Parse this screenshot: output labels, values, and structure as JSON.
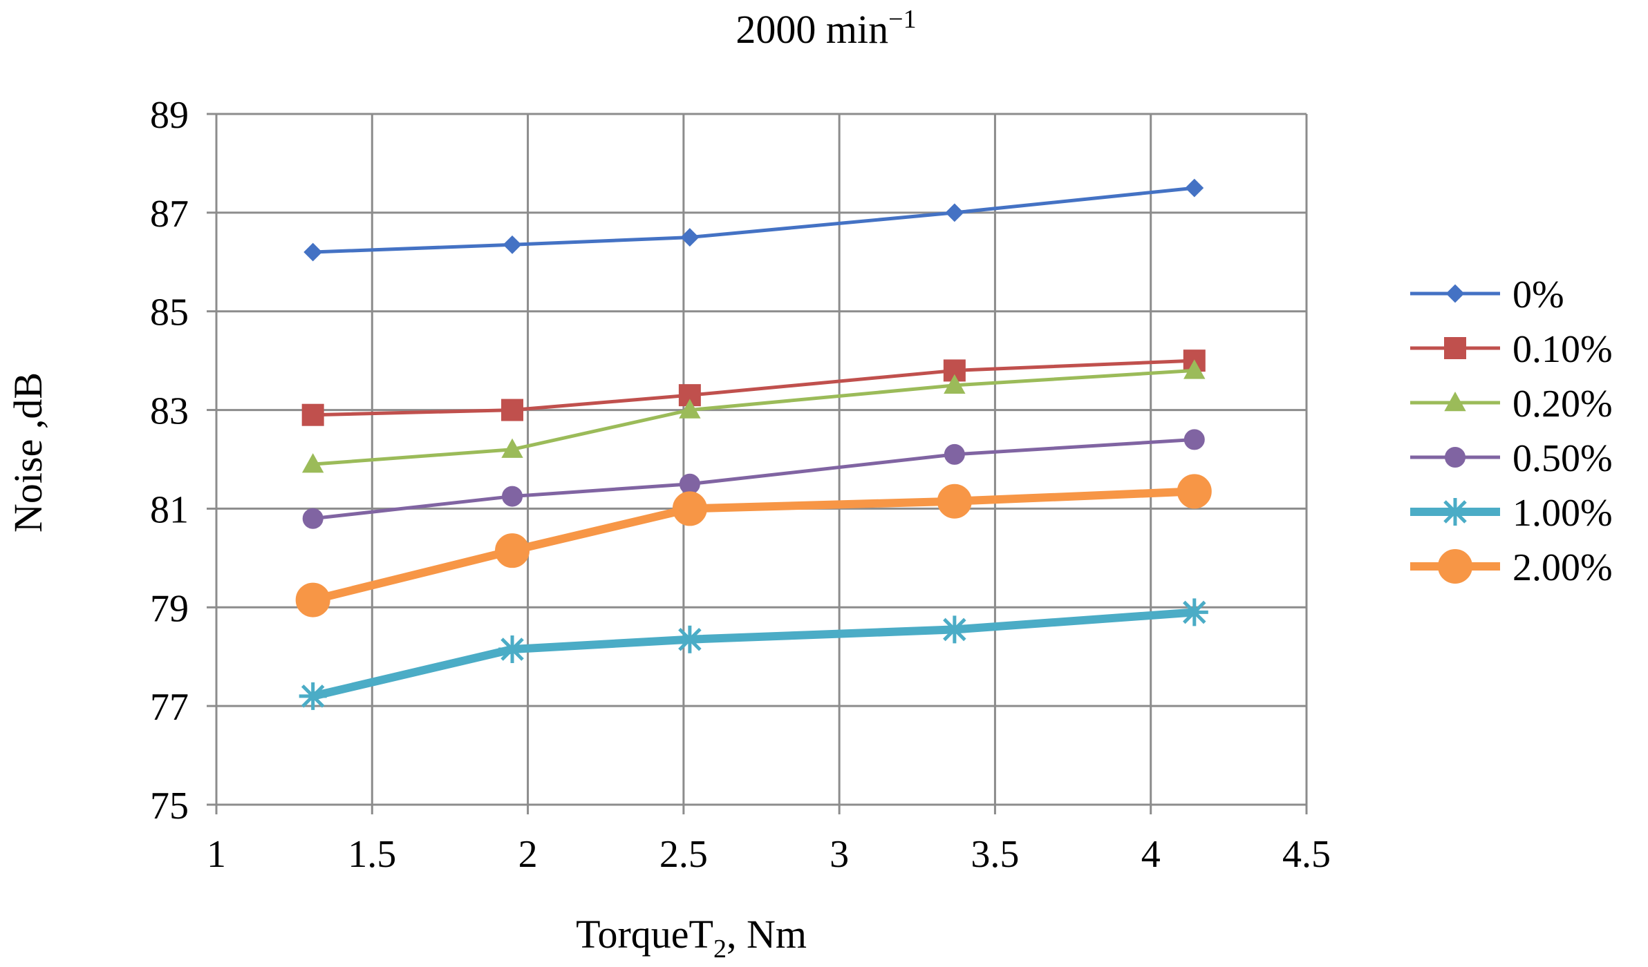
{
  "chart_data": {
    "type": "line",
    "title": "2000 min",
    "title_superscript": "−1",
    "xlabel": "TorqueT",
    "xlabel_subscript": "2",
    "xlabel_suffix": ", Nm",
    "ylabel": "Noise ,dB",
    "xlim": [
      1,
      4.5
    ],
    "ylim": [
      75,
      89
    ],
    "xticks": [
      1,
      1.5,
      2,
      2.5,
      3,
      3.5,
      4,
      4.5
    ],
    "xtick_labels": [
      "1",
      "1.5",
      "2",
      "2.5",
      "3",
      "3.5",
      "4",
      "4.5"
    ],
    "yticks": [
      75,
      77,
      79,
      81,
      83,
      85,
      87,
      89
    ],
    "ytick_labels": [
      "75",
      "77",
      "79",
      "81",
      "83",
      "85",
      "87",
      "89"
    ],
    "grid": true,
    "legend_position": "right",
    "x": [
      1.31,
      1.95,
      2.52,
      3.37,
      4.14
    ],
    "series": [
      {
        "name": "0%",
        "color": "#4472c4",
        "marker": "diamond",
        "weight": "thin",
        "values": [
          86.2,
          86.35,
          86.5,
          87.0,
          87.5
        ]
      },
      {
        "name": "0.10%",
        "color": "#c0504d",
        "marker": "square",
        "weight": "thin",
        "values": [
          82.9,
          83.0,
          83.3,
          83.8,
          84.0
        ]
      },
      {
        "name": "0.20%",
        "color": "#9bbb59",
        "marker": "triangle",
        "weight": "thin",
        "values": [
          81.9,
          82.2,
          83.0,
          83.5,
          83.8
        ]
      },
      {
        "name": "0.50%",
        "color": "#8064a2",
        "marker": "circle",
        "weight": "thin",
        "values": [
          80.8,
          81.25,
          81.5,
          82.1,
          82.4
        ]
      },
      {
        "name": "1.00%",
        "color": "#4bacc6",
        "marker": "star",
        "weight": "thick",
        "values": [
          77.2,
          78.15,
          78.35,
          78.55,
          78.9
        ]
      },
      {
        "name": "2.00%",
        "color": "#f79646",
        "marker": "circle-large",
        "weight": "thick",
        "values": [
          79.15,
          80.15,
          81.0,
          81.15,
          81.35
        ]
      }
    ]
  }
}
